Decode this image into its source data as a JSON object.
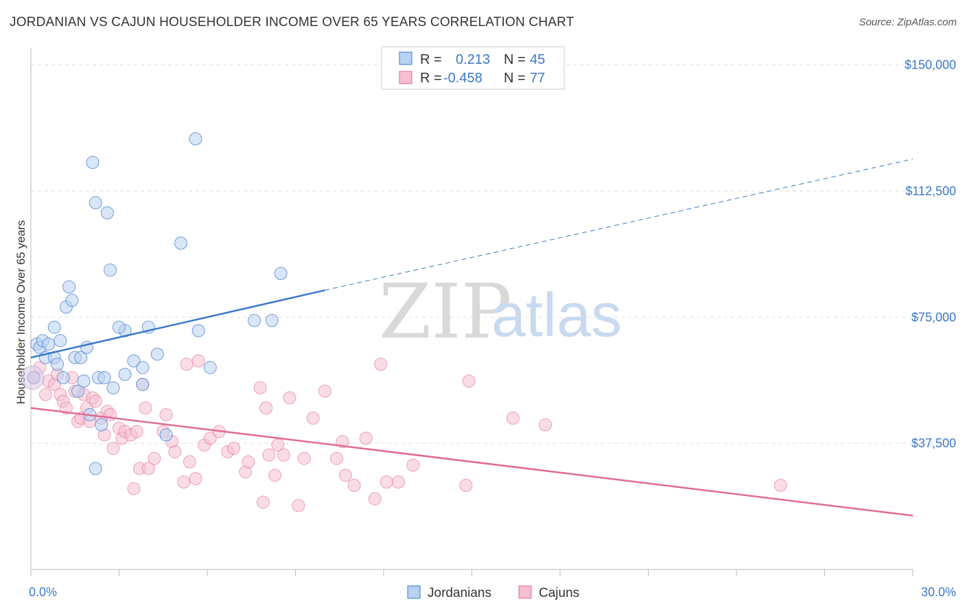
{
  "title": "JORDANIAN VS CAJUN HOUSEHOLDER INCOME OVER 65 YEARS CORRELATION CHART",
  "source": "Source: ZipAtlas.com",
  "watermark": {
    "zip": "ZIP",
    "atlas": "atlas"
  },
  "colors": {
    "jordanian": "#3a78c9",
    "cajun": "#e06a95",
    "jordanian_fill": "#b9d2f2",
    "cajun_fill": "#f5bfd2"
  },
  "legend": {
    "r_label": "R =",
    "n_label": "N =",
    "rows": [
      {
        "r": "0.213",
        "n": "45"
      },
      {
        "r": "-0.458",
        "n": "77"
      }
    ]
  },
  "chart_data": {
    "type": "scatter",
    "xlabel": "",
    "ylabel": "Householder Income Over 65 years",
    "xlim": [
      0,
      30
    ],
    "ylim": [
      0,
      155000
    ],
    "x_tick_labels": [
      "0.0%",
      "30.0%"
    ],
    "y_ticks": [
      {
        "value": 37500,
        "label": "$37,500"
      },
      {
        "value": 75000,
        "label": "$75,000"
      },
      {
        "value": 112500,
        "label": "$112,500"
      },
      {
        "value": 150000,
        "label": "$150,000"
      }
    ],
    "grid": true,
    "legend_position": "top-center",
    "series": [
      {
        "name": "Jordanians",
        "trend": {
          "x0": 0,
          "y0": 63000,
          "x1": 10,
          "y1": 83000,
          "x_dash_end": 30,
          "y_dash_end": 122000
        },
        "points": [
          [
            0.1,
            57000
          ],
          [
            0.2,
            67000
          ],
          [
            0.3,
            66000
          ],
          [
            0.4,
            68000
          ],
          [
            0.5,
            63000
          ],
          [
            0.6,
            67000
          ],
          [
            0.8,
            63000
          ],
          [
            0.9,
            61000
          ],
          [
            1.0,
            68000
          ],
          [
            1.1,
            57000
          ],
          [
            1.2,
            78000
          ],
          [
            1.3,
            84000
          ],
          [
            1.4,
            80000
          ],
          [
            0.8,
            72000
          ],
          [
            1.5,
            63000
          ],
          [
            1.6,
            53000
          ],
          [
            1.7,
            63000
          ],
          [
            1.8,
            56000
          ],
          [
            1.9,
            66000
          ],
          [
            2.0,
            46000
          ],
          [
            2.1,
            121000
          ],
          [
            2.2,
            109000
          ],
          [
            2.2,
            30000
          ],
          [
            2.3,
            57000
          ],
          [
            2.4,
            43000
          ],
          [
            2.5,
            57000
          ],
          [
            2.6,
            106000
          ],
          [
            2.7,
            89000
          ],
          [
            2.8,
            54000
          ],
          [
            3.2,
            58000
          ],
          [
            3.2,
            71000
          ],
          [
            3.5,
            62000
          ],
          [
            3.8,
            55000
          ],
          [
            3.8,
            60000
          ],
          [
            4.0,
            72000
          ],
          [
            4.3,
            64000
          ],
          [
            4.6,
            40000
          ],
          [
            5.1,
            97000
          ],
          [
            5.6,
            128000
          ],
          [
            5.7,
            71000
          ],
          [
            6.1,
            60000
          ],
          [
            7.6,
            74000
          ],
          [
            8.2,
            74000
          ],
          [
            8.5,
            88000
          ],
          [
            3.0,
            72000
          ]
        ]
      },
      {
        "name": "Cajuns",
        "trend": {
          "x0": 0,
          "y0": 48000,
          "x1": 30,
          "y1": 16000
        },
        "points": [
          [
            0.1,
            57000
          ],
          [
            0.3,
            60000
          ],
          [
            0.5,
            52000
          ],
          [
            0.6,
            56000
          ],
          [
            0.8,
            55000
          ],
          [
            0.9,
            58000
          ],
          [
            1.0,
            52000
          ],
          [
            1.1,
            50000
          ],
          [
            1.2,
            48000
          ],
          [
            1.4,
            57000
          ],
          [
            1.5,
            53000
          ],
          [
            1.6,
            44000
          ],
          [
            1.7,
            45000
          ],
          [
            1.8,
            52000
          ],
          [
            1.9,
            48000
          ],
          [
            2.0,
            44000
          ],
          [
            2.1,
            51000
          ],
          [
            2.2,
            50000
          ],
          [
            2.4,
            45000
          ],
          [
            2.5,
            40000
          ],
          [
            2.6,
            47000
          ],
          [
            2.7,
            46000
          ],
          [
            2.8,
            36000
          ],
          [
            3.0,
            42000
          ],
          [
            3.1,
            39000
          ],
          [
            3.2,
            41000
          ],
          [
            3.4,
            40000
          ],
          [
            3.5,
            24000
          ],
          [
            3.6,
            41000
          ],
          [
            3.7,
            30000
          ],
          [
            3.8,
            55000
          ],
          [
            3.9,
            48000
          ],
          [
            4.0,
            30000
          ],
          [
            4.2,
            33000
          ],
          [
            4.5,
            41000
          ],
          [
            4.6,
            46000
          ],
          [
            4.8,
            38000
          ],
          [
            4.9,
            35000
          ],
          [
            5.2,
            26000
          ],
          [
            5.3,
            61000
          ],
          [
            5.4,
            32000
          ],
          [
            5.6,
            27000
          ],
          [
            5.7,
            62000
          ],
          [
            5.9,
            37000
          ],
          [
            6.1,
            39000
          ],
          [
            6.4,
            41000
          ],
          [
            6.7,
            35000
          ],
          [
            6.9,
            36000
          ],
          [
            7.3,
            29000
          ],
          [
            7.4,
            32000
          ],
          [
            7.8,
            54000
          ],
          [
            7.9,
            20000
          ],
          [
            8.0,
            48000
          ],
          [
            8.1,
            34000
          ],
          [
            8.3,
            28000
          ],
          [
            8.4,
            37000
          ],
          [
            8.6,
            34000
          ],
          [
            8.8,
            51000
          ],
          [
            9.1,
            19000
          ],
          [
            9.3,
            33000
          ],
          [
            9.6,
            45000
          ],
          [
            10.0,
            53000
          ],
          [
            10.4,
            33000
          ],
          [
            10.6,
            38000
          ],
          [
            10.7,
            28000
          ],
          [
            11.0,
            25000
          ],
          [
            11.4,
            39000
          ],
          [
            11.7,
            21000
          ],
          [
            11.9,
            61000
          ],
          [
            12.1,
            26000
          ],
          [
            12.5,
            26000
          ],
          [
            13.0,
            31000
          ],
          [
            14.8,
            25000
          ],
          [
            14.9,
            56000
          ],
          [
            16.4,
            45000
          ],
          [
            17.5,
            43000
          ],
          [
            25.5,
            25000
          ]
        ]
      }
    ]
  },
  "bottom_legend": [
    "Jordanians",
    "Cajuns"
  ]
}
